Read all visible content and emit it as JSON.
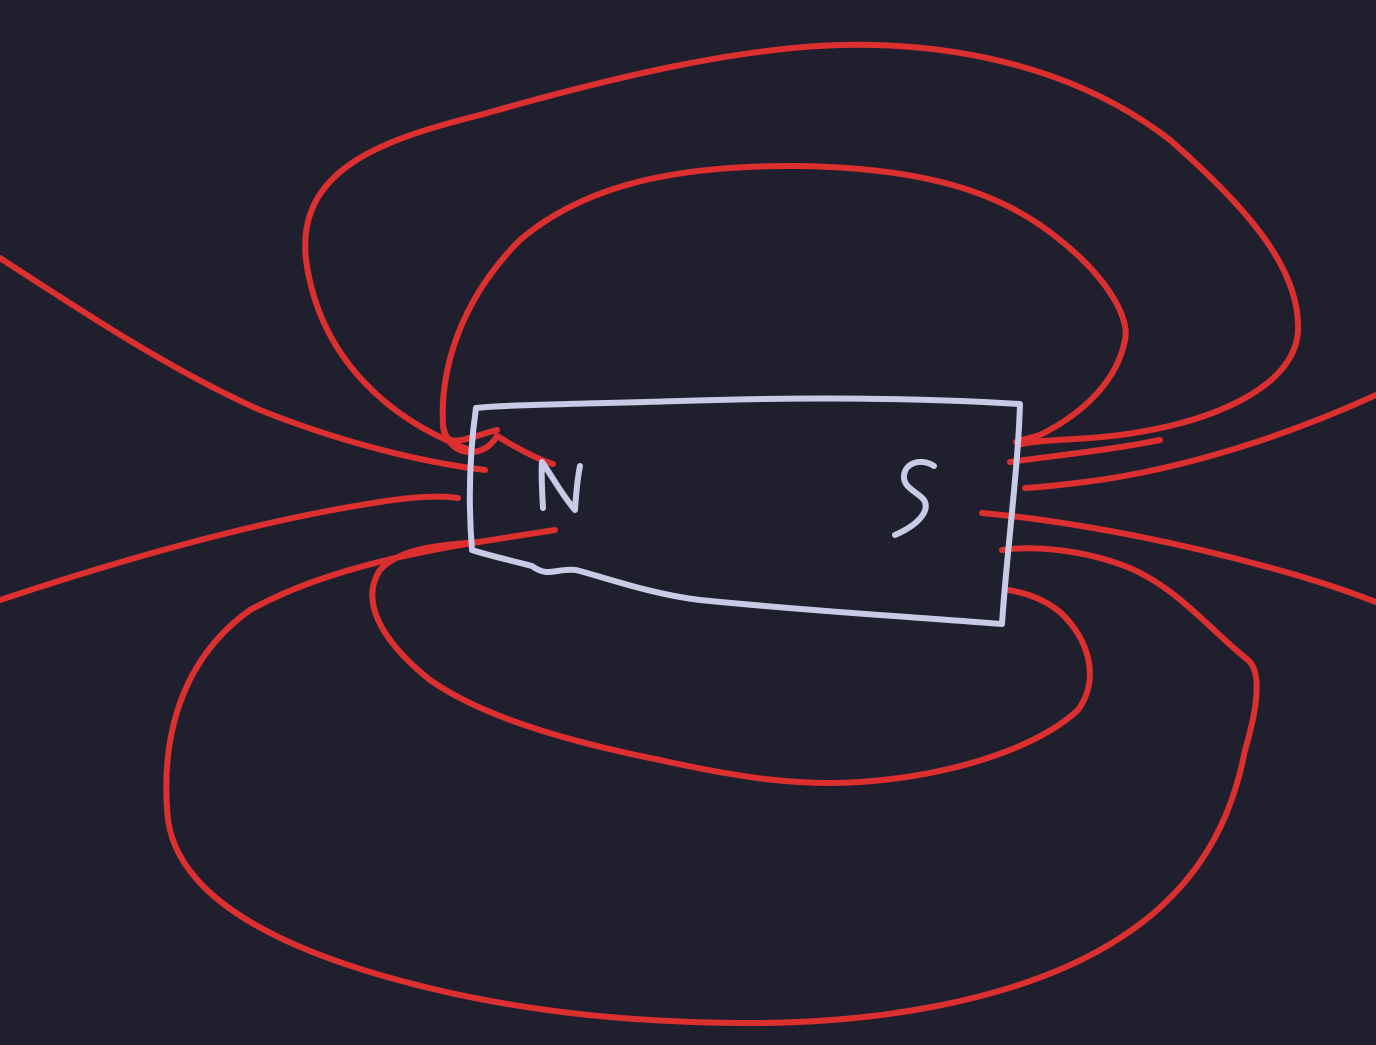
{
  "colors": {
    "background": "#201f2e",
    "field_line": "#dc2f2f",
    "magnet": "#c8cbe6"
  },
  "magnet": {
    "north_label": "N",
    "south_label": "S"
  },
  "field_lines": [
    "outer-top-loop",
    "inner-top-loop",
    "inner-bottom-loop",
    "outer-bottom-loop",
    "left-upper-ray",
    "left-lower-ray",
    "right-upper-ray",
    "right-lower-ray"
  ]
}
